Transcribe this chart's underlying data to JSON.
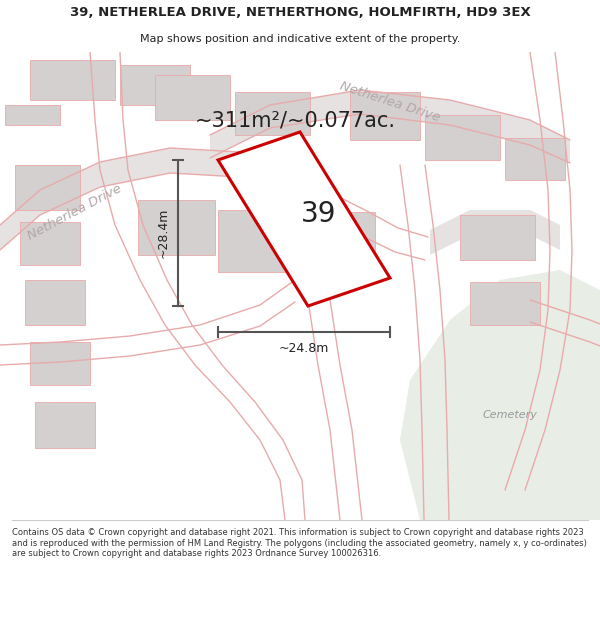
{
  "title": "39, NETHERLEA DRIVE, NETHERTHONG, HOLMFIRTH, HD9 3EX",
  "subtitle": "Map shows position and indicative extent of the property.",
  "area_text": "~311m²/~0.077ac.",
  "dim_width": "~24.8m",
  "dim_height": "~28.4m",
  "number_label": "39",
  "cemetery_label": "Cemetery",
  "road_label_1": "Netherlea Drive",
  "road_label_2": "Netherlea Drive",
  "footer": "Contains OS data © Crown copyright and database right 2021. This information is subject to Crown copyright and database rights 2023 and is reproduced with the permission of HM Land Registry. The polygons (including the associated geometry, namely x, y co-ordinates) are subject to Crown copyright and database rights 2023 Ordnance Survey 100026316.",
  "map_bg": "#f2f0f0",
  "cemetery_color": "#e8ede6",
  "road_fill": "#e6e2e2",
  "plot_fill": "#ffffff",
  "plot_outline": "#cc0000",
  "building_fill": "#d4d0d0",
  "road_line_color": "#e8aaaa",
  "dim_line_color": "#555555",
  "road_label_color": "#b0a8a8",
  "text_color": "#222222",
  "footer_color": "#333333"
}
